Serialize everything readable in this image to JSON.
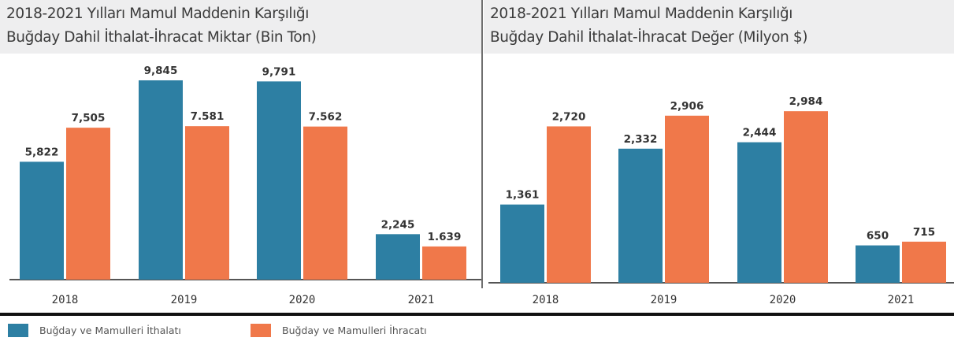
{
  "colors": {
    "import": "#2d7fa3",
    "export": "#f0784a",
    "axis": "#555555"
  },
  "chart_data": [
    {
      "type": "bar",
      "title": [
        "2018-2021 Yılları Mamul Maddenin Karşılığı",
        "Buğday Dahil İthalat-İhracat Miktar (Bin Ton)"
      ],
      "categories": [
        "2018",
        "2019",
        "2020",
        "2021"
      ],
      "series": [
        {
          "name": "Buğday ve Mamulleri İthalatı",
          "values": [
            5822,
            9845,
            9791,
            2245
          ],
          "labels": [
            "5,822",
            "9,845",
            "9,791",
            "2,245"
          ]
        },
        {
          "name": "Buğday ve Mamulleri İhracatı",
          "values": [
            7505,
            7581,
            7562,
            1639
          ],
          "labels": [
            "7,505",
            "7.581",
            "7.562",
            "1.639"
          ]
        }
      ],
      "ylim": [
        0,
        10000
      ]
    },
    {
      "type": "bar",
      "title": [
        "2018-2021 Yılları Mamul Maddenin Karşılığı",
        "Buğday Dahil İthalat-İhracat Değer (Milyon $)"
      ],
      "categories": [
        "2018",
        "2019",
        "2020",
        "2021"
      ],
      "series": [
        {
          "name": "Buğday ve Mamulleri İthalatı",
          "values": [
            1361,
            2332,
            2444,
            650
          ],
          "labels": [
            "1,361",
            "2,332",
            "2,444",
            "650"
          ]
        },
        {
          "name": "Buğday ve Mamulleri İhracatı",
          "values": [
            2720,
            2906,
            2984,
            715
          ],
          "labels": [
            "2,720",
            "2,906",
            "2,984",
            "715"
          ]
        }
      ],
      "ylim": [
        0,
        3000
      ]
    }
  ],
  "legend": {
    "items": [
      "Buğday ve Mamulleri İthalatı",
      "Buğday ve Mamulleri İhracatı"
    ]
  }
}
